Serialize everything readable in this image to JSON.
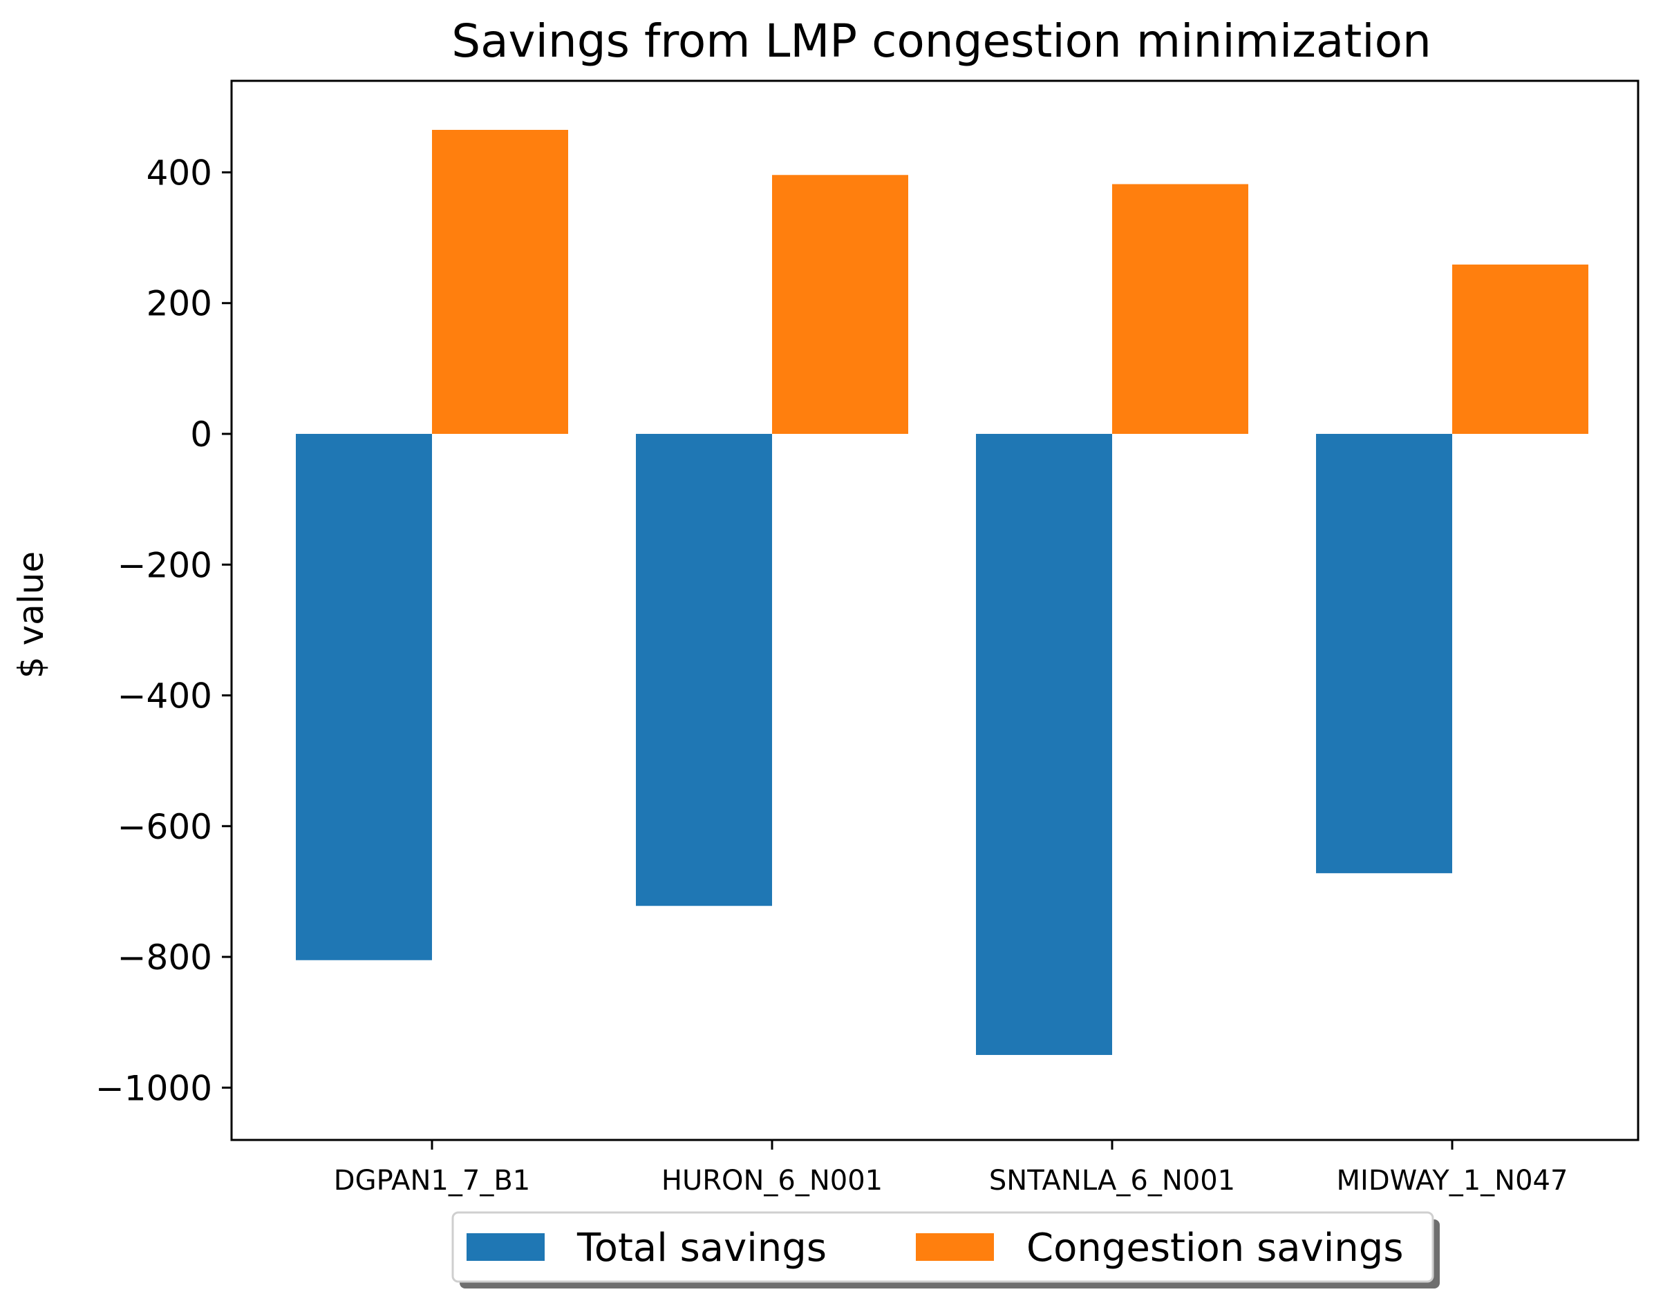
{
  "chart_data": {
    "type": "bar",
    "title": "Savings from LMP congestion minimization",
    "xlabel": "",
    "ylabel": "$ value",
    "categories": [
      "DGPAN1_7_B1",
      "HURON_6_N001",
      "SNTANLA_6_N001",
      "MIDWAY_1_N047"
    ],
    "series": [
      {
        "name": "Total savings",
        "color": "#1f77b4",
        "values": [
          -805,
          -722,
          -950,
          -672
        ]
      },
      {
        "name": "Congestion savings",
        "color": "#ff7f0e",
        "values": [
          465,
          396,
          382,
          259
        ]
      }
    ],
    "ylim": [
      -1080,
      540
    ],
    "yticks": [
      400,
      200,
      0,
      -200,
      -400,
      -600,
      -800,
      -1000
    ],
    "ytick_labels": [
      "400",
      "200",
      "0",
      "−200",
      "−400",
      "−600",
      "−800",
      "−1000"
    ],
    "grid": false,
    "legend_position": "bottom-center"
  }
}
